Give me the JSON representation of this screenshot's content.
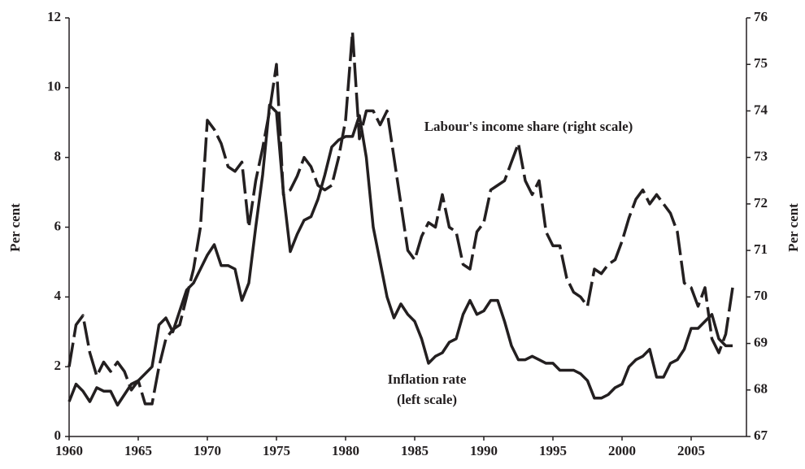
{
  "chart_data": {
    "type": "line",
    "ylabel": "Per cent",
    "y2label": "Per cent",
    "annotations": [
      "Labour's income share (right scale)",
      "Inflation rate",
      "(left scale)"
    ],
    "x": [
      1960,
      1960.5,
      1961,
      1961.5,
      1962,
      1962.5,
      1963,
      1963.5,
      1964,
      1964.5,
      1965,
      1965.5,
      1966,
      1966.5,
      1967,
      1967.5,
      1968,
      1968.5,
      1969,
      1969.5,
      1970,
      1970.5,
      1971,
      1971.5,
      1972,
      1972.5,
      1973,
      1973.5,
      1974,
      1974.5,
      1975,
      1975.5,
      1976,
      1976.5,
      1977,
      1977.5,
      1978,
      1978.5,
      1979,
      1979.5,
      1980,
      1980.5,
      1981,
      1981.5,
      1982,
      1982.5,
      1983,
      1983.5,
      1984,
      1984.5,
      1985,
      1985.5,
      1986,
      1986.5,
      1987,
      1987.5,
      1988,
      1988.5,
      1989,
      1989.5,
      1990,
      1990.5,
      1991,
      1991.5,
      1992,
      1992.5,
      1993,
      1993.5,
      1994,
      1994.5,
      1995,
      1995.5,
      1996,
      1996.5,
      1997,
      1997.5,
      1998,
      1998.5,
      1999,
      1999.5,
      2000,
      2000.5,
      2001,
      2001.5,
      2002,
      2002.5,
      2003,
      2003.5,
      2004,
      2004.5,
      2005,
      2005.5,
      2006,
      2006.5,
      2007,
      2007.5,
      2008
    ],
    "series": [
      {
        "name": "Inflation rate",
        "color": "#231f20",
        "dash": false,
        "values": [
          1.0,
          1.5,
          1.3,
          1.0,
          1.4,
          1.3,
          1.3,
          0.9,
          1.2,
          1.5,
          1.6,
          1.8,
          2.0,
          3.2,
          3.4,
          3.0,
          3.6,
          4.2,
          4.4,
          4.8,
          5.2,
          5.5,
          4.9,
          4.9,
          4.8,
          3.9,
          4.4,
          6.0,
          7.5,
          9.5,
          9.3,
          7.0,
          5.3,
          5.8,
          6.2,
          6.3,
          6.8,
          7.5,
          8.3,
          8.5,
          8.6,
          8.6,
          9.2,
          8.0,
          6.0,
          5.0,
          4.0,
          3.4,
          3.8,
          3.5,
          3.3,
          2.8,
          2.1,
          2.3,
          2.4,
          2.7,
          2.8,
          3.5,
          3.9,
          3.5,
          3.6,
          3.9,
          3.9,
          3.3,
          2.6,
          2.2,
          2.2,
          2.3,
          2.2,
          2.1,
          2.1,
          1.9,
          1.9,
          1.9,
          1.8,
          1.6,
          1.1,
          1.1,
          1.2,
          1.4,
          1.5,
          2.0,
          2.2,
          2.3,
          2.5,
          1.7,
          1.7,
          2.1,
          2.2,
          2.5,
          3.1,
          3.1,
          3.3,
          3.5,
          2.8,
          2.6,
          2.6
        ]
      },
      {
        "name": "Labour's income share",
        "color": "#231f20",
        "dash": true,
        "axis": "y2",
        "values": [
          68.5,
          69.4,
          69.6,
          68.8,
          68.3,
          68.6,
          68.4,
          68.6,
          68.4,
          68.0,
          68.2,
          67.7,
          67.7,
          68.5,
          69.1,
          69.3,
          69.4,
          70.0,
          70.6,
          71.5,
          73.8,
          73.6,
          73.3,
          72.8,
          72.7,
          72.9,
          71.5,
          72.5,
          73.2,
          74.0,
          75.0,
          72.2,
          72.3,
          72.6,
          73.0,
          72.8,
          72.4,
          72.3,
          72.4,
          73.0,
          73.8,
          75.7,
          73.4,
          74.0,
          74.0,
          73.7,
          74.0,
          73.0,
          72.0,
          71.0,
          70.8,
          71.3,
          71.6,
          71.5,
          72.2,
          71.5,
          71.4,
          70.7,
          70.6,
          71.4,
          71.6,
          72.3,
          72.4,
          72.5,
          72.9,
          73.3,
          72.5,
          72.2,
          72.5,
          71.4,
          71.1,
          71.1,
          70.4,
          70.1,
          70.0,
          69.8,
          70.6,
          70.5,
          70.7,
          70.8,
          71.2,
          71.7,
          72.1,
          72.3,
          72.0,
          72.2,
          72.0,
          71.8,
          71.4,
          70.3,
          70.2,
          69.8,
          70.2,
          69.1,
          68.8,
          69.2,
          70.2
        ]
      }
    ],
    "xlim": [
      1960,
      2009
    ],
    "xticks": [
      1960,
      1965,
      1970,
      1975,
      1980,
      1985,
      1990,
      1995,
      2000,
      2005
    ],
    "ylim": [
      0,
      12
    ],
    "yticks": [
      0,
      2,
      4,
      6,
      8,
      10,
      12
    ],
    "y2lim": [
      67,
      76
    ],
    "y2ticks": [
      67,
      68,
      69,
      70,
      71,
      72,
      73,
      74,
      75,
      76
    ],
    "grid": false
  }
}
